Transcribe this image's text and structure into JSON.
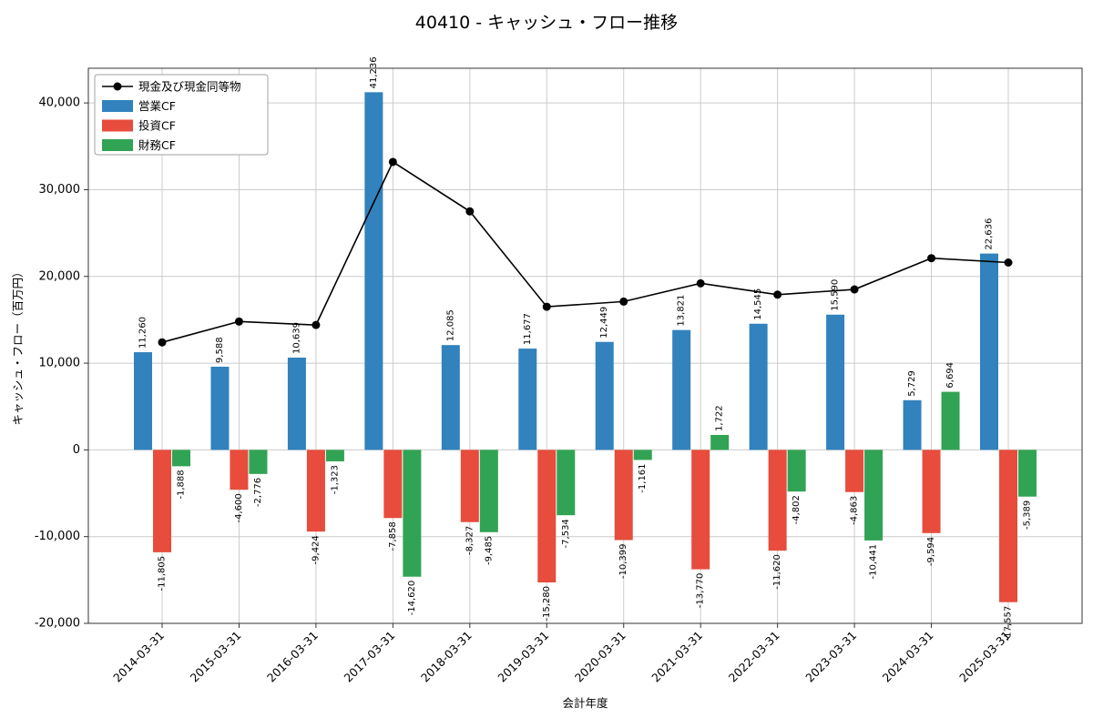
{
  "chart_data": {
    "type": "bar",
    "title": "40410 - キャッシュ・フロー推移",
    "xlabel": "会計年度",
    "ylabel": "キャッシュ・フロー（百万円）",
    "categories": [
      "2014-03-31",
      "2015-03-31",
      "2016-03-31",
      "2017-03-31",
      "2018-03-31",
      "2019-03-31",
      "2020-03-31",
      "2021-03-31",
      "2022-03-31",
      "2023-03-31",
      "2024-03-31",
      "2025-03-31"
    ],
    "series": [
      {
        "name": "営業CF",
        "color": "#3182bd",
        "values": [
          11260,
          9588,
          10639,
          41236,
          12085,
          11677,
          12449,
          13821,
          14545,
          15590,
          5729,
          22636
        ]
      },
      {
        "name": "投資CF",
        "color": "#e74c3c",
        "values": [
          -11805,
          -4600,
          -9424,
          -7858,
          -8327,
          -15280,
          -10399,
          -13770,
          -11620,
          -4863,
          -9594,
          -17557
        ]
      },
      {
        "name": "財務CF",
        "color": "#31a354",
        "values": [
          -1888,
          -2776,
          -1323,
          -14620,
          -9485,
          -7534,
          -1161,
          1722,
          -4802,
          -10441,
          6694,
          -5389
        ]
      }
    ],
    "line_series": {
      "name": "現金及び現金同等物",
      "color": "#000000",
      "values": [
        12400,
        14800,
        14400,
        33200,
        27500,
        16500,
        17100,
        19200,
        17900,
        18500,
        22100,
        21600
      ]
    },
    "ylim": [
      -20000,
      44000
    ],
    "yticks": [
      -20000,
      -10000,
      0,
      10000,
      20000,
      30000,
      40000
    ],
    "grid": true,
    "legend_position": "upper-left"
  }
}
